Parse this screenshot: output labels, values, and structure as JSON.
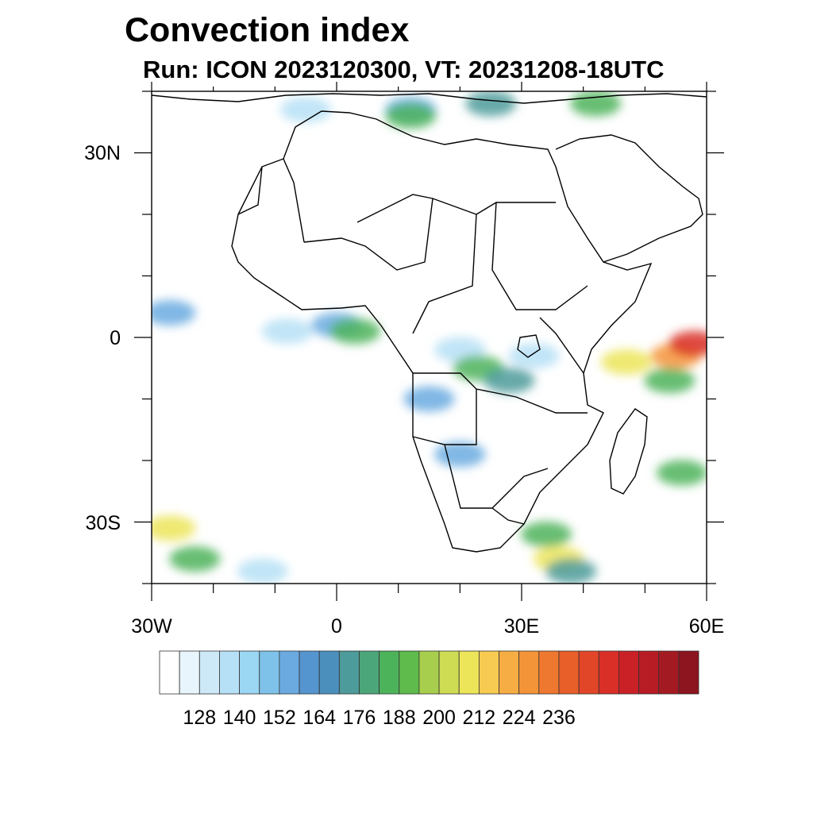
{
  "title": "Convection index",
  "subtitle": "Run: ICON 2023120300,  VT: 20231208-18UTC",
  "map": {
    "lon_range": [
      -30,
      60
    ],
    "lat_range": [
      -40,
      40
    ],
    "lat_labels": [
      {
        "lat": 30,
        "label": "30N"
      },
      {
        "lat": 0,
        "label": "0"
      },
      {
        "lat": -30,
        "label": "30S"
      }
    ],
    "lon_labels": [
      {
        "lon": -30,
        "label": "30W"
      },
      {
        "lon": 0,
        "label": "0"
      },
      {
        "lon": 30,
        "label": "30E"
      },
      {
        "lon": 60,
        "label": "60E"
      }
    ]
  },
  "colorbar": {
    "colors": [
      "#ffffff",
      "#e8f5fc",
      "#cde9f7",
      "#b6e0f6",
      "#9bd6f3",
      "#7ec2ea",
      "#6aaae0",
      "#5595cf",
      "#4b8fbd",
      "#4d9b9a",
      "#4ba67a",
      "#4cb35b",
      "#5ebb4c",
      "#a8ce4e",
      "#cedc54",
      "#ece55a",
      "#f7ca52",
      "#f6ad44",
      "#f49438",
      "#ef7830",
      "#e85f2a",
      "#e24628",
      "#d92f27",
      "#c92126",
      "#b71c24",
      "#a41a22",
      "#8c151f"
    ],
    "labels": [
      "128",
      "140",
      "152",
      "164",
      "176",
      "188",
      "200",
      "212",
      "224",
      "236"
    ],
    "label_values": [
      128,
      140,
      152,
      164,
      176,
      188,
      200,
      212,
      224,
      236
    ]
  },
  "field_colors": {
    "light_blue": "#b6e0f6",
    "blue": "#6aaae0",
    "teal": "#4d9b9a",
    "green": "#4cb35b",
    "yellow": "#ece55a",
    "orange": "#f49438",
    "red": "#d92f27"
  },
  "field_cells": [
    {
      "name": "north-atlantic-patch",
      "lon": -5,
      "lat": 37,
      "level": "light_blue"
    },
    {
      "name": "mediterranean-west",
      "lon": 12,
      "lat": 37,
      "level": "blue"
    },
    {
      "name": "mediterranean-green",
      "lon": 12,
      "lat": 36,
      "level": "green"
    },
    {
      "name": "mediterranean-east",
      "lon": 25,
      "lat": 38,
      "level": "teal"
    },
    {
      "name": "levant",
      "lon": 42,
      "lat": 38,
      "level": "green"
    },
    {
      "name": "atlantic-west",
      "lon": -27,
      "lat": 4,
      "level": "blue"
    },
    {
      "name": "gulf-of-guinea-1",
      "lon": -8,
      "lat": 1,
      "level": "light_blue"
    },
    {
      "name": "gulf-of-guinea-2",
      "lon": 0,
      "lat": 2,
      "level": "blue"
    },
    {
      "name": "gulf-of-guinea-3",
      "lon": 3,
      "lat": 1,
      "level": "green"
    },
    {
      "name": "central-africa-1",
      "lon": 20,
      "lat": -2,
      "level": "light_blue"
    },
    {
      "name": "central-africa-2",
      "lon": 23,
      "lat": -5,
      "level": "green"
    },
    {
      "name": "congo-basin",
      "lon": 28,
      "lat": -7,
      "level": "teal"
    },
    {
      "name": "angola",
      "lon": 15,
      "lat": -10,
      "level": "blue"
    },
    {
      "name": "east-africa",
      "lon": 32,
      "lat": -3,
      "level": "light_blue"
    },
    {
      "name": "kalahari",
      "lon": 20,
      "lat": -19,
      "level": "blue"
    },
    {
      "name": "indian-ocean-1",
      "lon": 47,
      "lat": -4,
      "level": "yellow"
    },
    {
      "name": "indian-ocean-2",
      "lon": 55,
      "lat": -3,
      "level": "orange"
    },
    {
      "name": "indian-ocean-3",
      "lon": 58,
      "lat": -1,
      "level": "red"
    },
    {
      "name": "indian-ocean-4",
      "lon": 54,
      "lat": -7,
      "level": "green"
    },
    {
      "name": "madagascar-east",
      "lon": 56,
      "lat": -22,
      "level": "green"
    },
    {
      "name": "south-atlantic-1",
      "lon": -23,
      "lat": -36,
      "level": "green"
    },
    {
      "name": "south-atlantic-2",
      "lon": -27,
      "lat": -31,
      "level": "yellow"
    },
    {
      "name": "south-atlantic-3",
      "lon": -12,
      "lat": -38,
      "level": "light_blue"
    },
    {
      "name": "natal-1",
      "lon": 36,
      "lat": -36,
      "level": "yellow"
    },
    {
      "name": "natal-2",
      "lon": 34,
      "lat": -32,
      "level": "green"
    },
    {
      "name": "natal-3",
      "lon": 38,
      "lat": -38,
      "level": "teal"
    }
  ]
}
